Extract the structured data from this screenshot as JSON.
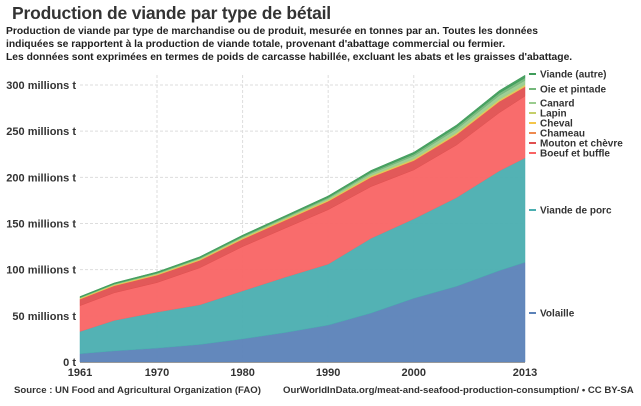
{
  "header": {
    "title": "Production de viande par type de bétail",
    "subtitle_lines": [
      "Production de viande par type de marchandise ou de produit, mesurée en tonnes par an. Toutes les données",
      "indiquées se rapportent à la production de viande totale, provenant d'abattage commercial ou fermier.",
      "Les données sont exprimées en termes de poids de carcasse habillée, excluant les abats et les graisses d'abattage."
    ]
  },
  "footer": {
    "source": "Source : UN Food and Agricultural Organization (FAO)",
    "url_license": "OurWorldInData.org/meat-and-seafood-production-consumption/ • CC BY-SA"
  },
  "chart_data": {
    "type": "area",
    "stacked": true,
    "title": "Production de viande par type de bétail",
    "xlabel": "",
    "ylabel": "",
    "unit": "millions t",
    "x": [
      1961,
      1965,
      1970,
      1975,
      1980,
      1985,
      1990,
      1995,
      2000,
      2005,
      2010,
      2013
    ],
    "xlim": [
      1961,
      2013
    ],
    "ylim": [
      0,
      310
    ],
    "x_ticks": [
      "1961",
      "1970",
      "1980",
      "1990",
      "2000",
      "2013"
    ],
    "x_tick_values": [
      1961,
      1970,
      1980,
      1990,
      2000,
      2013
    ],
    "y_ticks": [
      "0 t",
      "50 millions t",
      "100 millions t",
      "150 millions t",
      "200 millions t",
      "250 millions t",
      "300 millions t"
    ],
    "y_tick_values": [
      0,
      50,
      100,
      150,
      200,
      250,
      300
    ],
    "grid": true,
    "legend_position": "right (end labels)",
    "series": [
      {
        "name": "Volaille",
        "color": "#5b82b8",
        "values": [
          9,
          12,
          15,
          19,
          25,
          32,
          40,
          53,
          69,
          82,
          99,
          108
        ]
      },
      {
        "name": "Viande de porc",
        "color": "#4aaeb0",
        "values": [
          24,
          33,
          39,
          43,
          52,
          60,
          66,
          81,
          86,
          96,
          108,
          113
        ]
      },
      {
        "name": "Boeuf et buffle",
        "color": "#f96464",
        "values": [
          28,
          30,
          32,
          40,
          48,
          53,
          59,
          56,
          53,
          57,
          63,
          67
        ]
      },
      {
        "name": "Mouton et chèvre",
        "color": "#e05050",
        "values": [
          7,
          7.5,
          8,
          8,
          8,
          8.5,
          9,
          10,
          10,
          11,
          12,
          10
        ]
      },
      {
        "name": "Chameau",
        "color": "#ee8a50",
        "values": [
          0.2,
          0.2,
          0.2,
          0.2,
          0.2,
          0.3,
          0.3,
          0.3,
          0.3,
          0.4,
          0.4,
          0.4
        ]
      },
      {
        "name": "Cheval",
        "color": "#f4c64a",
        "values": [
          0.6,
          0.6,
          0.6,
          0.6,
          0.6,
          0.6,
          0.6,
          0.7,
          0.7,
          0.7,
          0.7,
          0.7
        ]
      },
      {
        "name": "Lapin",
        "color": "#c5cf6a",
        "values": [
          0.4,
          0.4,
          0.5,
          0.6,
          0.7,
          0.8,
          1.0,
          1.1,
          1.2,
          1.3,
          1.5,
          1.6
        ]
      },
      {
        "name": "Canard",
        "color": "#9acc8f",
        "values": [
          0.4,
          0.5,
          0.6,
          0.7,
          0.8,
          1.0,
          1.3,
          2.0,
          3.0,
          3.6,
          4.0,
          4.3
        ]
      },
      {
        "name": "Oie et pintade",
        "color": "#73b77a",
        "values": [
          0.3,
          0.4,
          0.5,
          0.6,
          0.7,
          0.9,
          1.1,
          1.6,
          2.0,
          2.4,
          2.7,
          2.8
        ]
      },
      {
        "name": "Viande (autre)",
        "color": "#3f9c5a",
        "values": [
          1.0,
          1.1,
          1.2,
          1.3,
          1.4,
          1.5,
          1.6,
          1.8,
          2.0,
          2.3,
          2.6,
          2.8
        ]
      }
    ]
  }
}
